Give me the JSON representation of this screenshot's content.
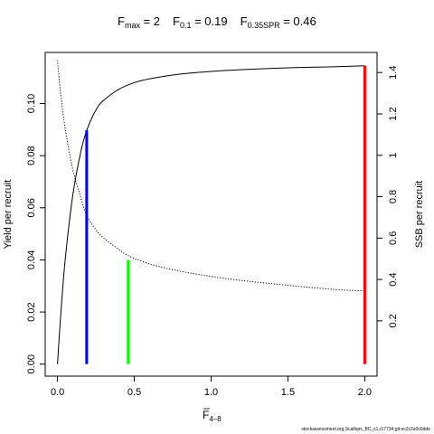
{
  "chart_data": {
    "type": "line",
    "title_parts": [
      {
        "main": "F",
        "sub": "max",
        "rest": " = 2"
      },
      {
        "main": "F",
        "sub": "0.1",
        "rest": " = 0.19"
      },
      {
        "main": "F",
        "sub": "0.35SPR",
        "rest": " = 0.46"
      }
    ],
    "xlabel": "F",
    "xlabel_sub": "4–8",
    "ylabel_left": "Yield per recruit",
    "ylabel_right": "SSB per recruit",
    "xlim": [
      -0.08,
      2.08
    ],
    "ylim_left": [
      -0.0046,
      0.1196
    ],
    "ylim_right": [
      -0.067,
      1.497
    ],
    "x_ticks": [
      0,
      0.5,
      1,
      1.5,
      2
    ],
    "x_tick_labels": [
      "0.0",
      "0.5",
      "1.0",
      "1.5",
      "2.0"
    ],
    "y_left_ticks": [
      0,
      0.02,
      0.04,
      0.06,
      0.08,
      0.1
    ],
    "y_left_tick_labels": [
      "0.00",
      "0.02",
      "0.04",
      "0.06",
      "0.08",
      "0.10"
    ],
    "y_right_ticks": [
      0.2,
      0.4,
      0.6,
      0.8,
      1.0,
      1.2,
      1.4
    ],
    "y_right_tick_labels": [
      "0.2",
      "0.4",
      "0.6",
      "0.8",
      "1",
      "1.2",
      "1.4"
    ],
    "series": [
      {
        "name": "Yield per recruit",
        "axis": "left",
        "style": "solid",
        "color": "#000000",
        "x": [
          0,
          0.02,
          0.05,
          0.1,
          0.15,
          0.19,
          0.25,
          0.3,
          0.4,
          0.5,
          0.6,
          0.8,
          1.0,
          1.2,
          1.5,
          1.8,
          2.0
        ],
        "y": [
          0.0,
          0.018,
          0.04,
          0.065,
          0.081,
          0.0897,
          0.0975,
          0.1012,
          0.1055,
          0.108,
          0.1095,
          0.1113,
          0.1123,
          0.113,
          0.1137,
          0.1141,
          0.1145
        ]
      },
      {
        "name": "SSB per recruit",
        "axis": "right",
        "style": "dotted",
        "color": "#000000",
        "x": [
          0,
          0.02,
          0.05,
          0.1,
          0.15,
          0.19,
          0.25,
          0.3,
          0.4,
          0.46,
          0.6,
          0.8,
          1.0,
          1.2,
          1.5,
          1.8,
          2.0
        ],
        "y": [
          1.46,
          1.3,
          1.13,
          0.93,
          0.8,
          0.71,
          0.64,
          0.6,
          0.545,
          0.515,
          0.475,
          0.44,
          0.415,
          0.395,
          0.372,
          0.352,
          0.345
        ]
      }
    ],
    "reference_lines": [
      {
        "label": "F0.1",
        "x": 0.19,
        "y": 0.0897,
        "color": "#0000ff"
      },
      {
        "label": "F0.35SPR",
        "x": 0.46,
        "y": 0.04,
        "color": "#00ff00"
      },
      {
        "label": "Fmax",
        "x": 2.0,
        "y": 0.1145,
        "color": "#ff0000"
      }
    ],
    "grid": false,
    "legend": "none",
    "footer": "stockassessment.org,Scallops_BC_s1,r17734,git:ec2c2a0c6dde"
  }
}
